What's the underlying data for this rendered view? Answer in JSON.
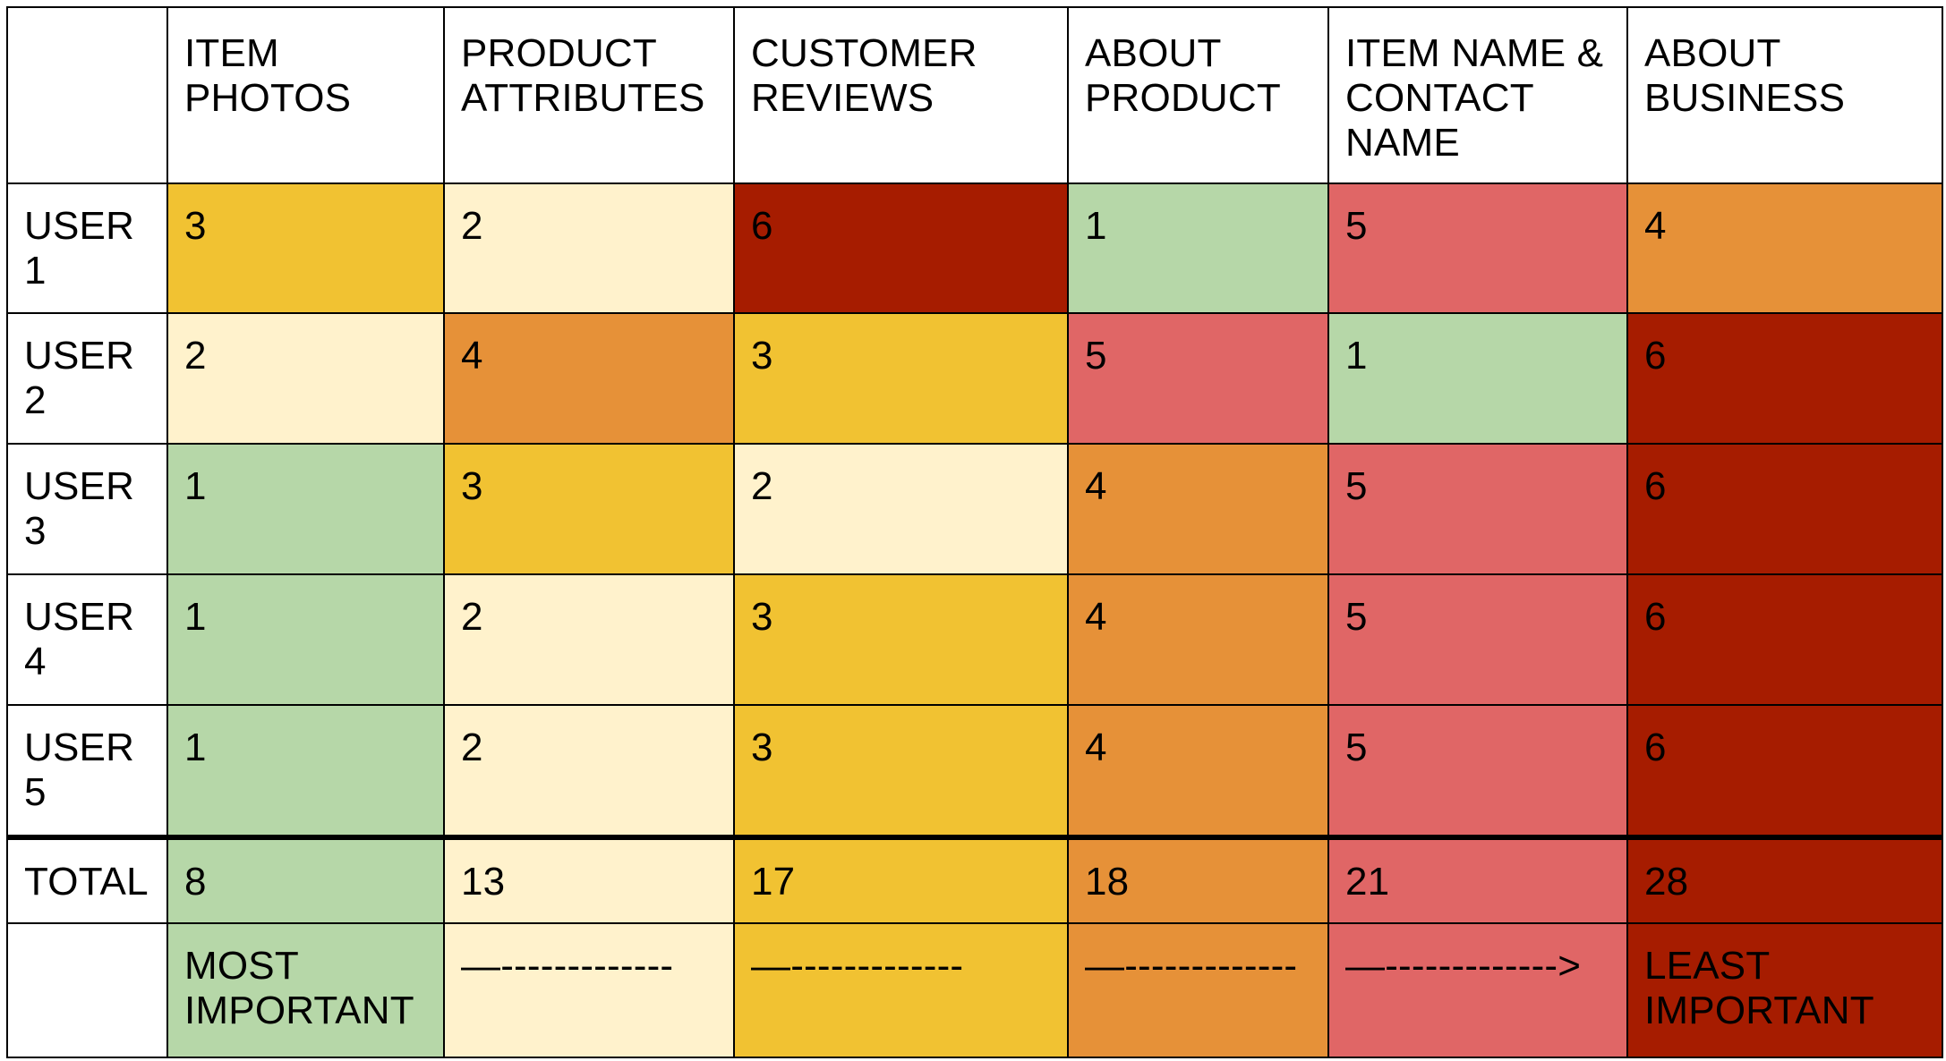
{
  "colors": {
    "rank_1": "#b6d7a8",
    "rank_2": "#fff2cc",
    "rank_3": "#f1c232",
    "rank_4": "#e69138",
    "rank_5": "#e06666",
    "rank_6": "#a61c00",
    "header_bg": "#ffffff",
    "grid_line": "#000000"
  },
  "table": {
    "headers": [
      "",
      "ITEM\nPHOTOS",
      "PRODUCT\nATTRIBUTES",
      "CUSTOMER\nREVIEWS",
      "ABOUT\nPRODUCT",
      "ITEM NAME &\nCONTACT\nNAME",
      "ABOUT\nBUSINESS"
    ],
    "rows": [
      {
        "label": "USER\n1",
        "values": [
          "3",
          "2",
          "6",
          "1",
          "5",
          "4"
        ],
        "ranks": [
          3,
          2,
          6,
          1,
          5,
          4
        ]
      },
      {
        "label": "USER\n2",
        "values": [
          "2",
          "4",
          "3",
          "5",
          "1",
          "6"
        ],
        "ranks": [
          2,
          4,
          3,
          5,
          1,
          6
        ]
      },
      {
        "label": "USER\n3",
        "values": [
          "1",
          "3",
          "2",
          "4",
          "5",
          "6"
        ],
        "ranks": [
          1,
          3,
          2,
          4,
          5,
          6
        ]
      },
      {
        "label": "USER\n4",
        "values": [
          "1",
          "2",
          "3",
          "4",
          "5",
          "6"
        ],
        "ranks": [
          1,
          2,
          3,
          4,
          5,
          6
        ]
      },
      {
        "label": "USER\n5",
        "values": [
          "1",
          "2",
          "3",
          "4",
          "5",
          "6"
        ],
        "ranks": [
          1,
          2,
          3,
          4,
          5,
          6
        ]
      }
    ],
    "total": {
      "label": "TOTAL",
      "values": [
        "8",
        "13",
        "17",
        "18",
        "21",
        "28"
      ],
      "ranks": [
        1,
        2,
        3,
        4,
        5,
        6
      ]
    },
    "legend": {
      "label": "",
      "values": [
        "MOST\nIMPORTANT",
        "—-------------",
        "—-------------",
        "—-------------",
        "—------------->",
        "LEAST\nIMPORTANT"
      ],
      "ranks": [
        1,
        2,
        3,
        4,
        5,
        6
      ]
    }
  }
}
